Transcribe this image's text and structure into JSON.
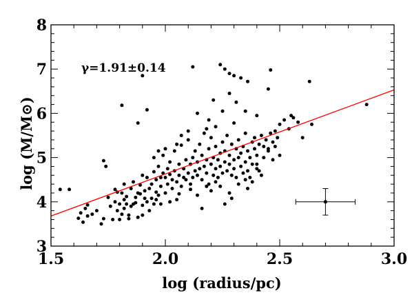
{
  "chart_data": {
    "type": "scatter",
    "xlabel": "log (radius/pc)",
    "ylabel": "log (M/M⊙)",
    "xlim": [
      1.5,
      3.0
    ],
    "ylim": [
      3.0,
      8.0
    ],
    "xticks": [
      "1.5",
      "2.0",
      "2.5",
      "3.0"
    ],
    "yticks": [
      "3",
      "4",
      "5",
      "6",
      "7",
      "8"
    ],
    "annotation": "γ=1.91±0.14",
    "fit_line": {
      "color": "#ff0000",
      "slope": 1.91,
      "x": [
        1.5,
        3.0
      ],
      "y": [
        3.68,
        6.53
      ]
    },
    "error_bar": {
      "x": 2.7,
      "y": 4.0,
      "xerr": 0.13,
      "yerr": 0.3
    },
    "points": [
      [
        1.54,
        4.28
      ],
      [
        1.58,
        4.28
      ],
      [
        1.62,
        3.63
      ],
      [
        1.63,
        3.75
      ],
      [
        1.64,
        3.54
      ],
      [
        1.65,
        3.85
      ],
      [
        1.66,
        3.93
      ],
      [
        1.66,
        3.68
      ],
      [
        1.68,
        3.72
      ],
      [
        1.7,
        3.8
      ],
      [
        1.72,
        3.5
      ],
      [
        1.73,
        3.62
      ],
      [
        1.73,
        4.93
      ],
      [
        1.74,
        4.8
      ],
      [
        1.75,
        4.1
      ],
      [
        1.76,
        3.9
      ],
      [
        1.77,
        3.6
      ],
      [
        1.78,
        4.0
      ],
      [
        1.78,
        4.28
      ],
      [
        1.79,
        3.8
      ],
      [
        1.79,
        4.22
      ],
      [
        1.8,
        3.6
      ],
      [
        1.8,
        3.95
      ],
      [
        1.81,
        3.72
      ],
      [
        1.81,
        4.2
      ],
      [
        1.82,
        4.05
      ],
      [
        1.82,
        4.4
      ],
      [
        1.82,
        3.85
      ],
      [
        1.83,
        3.95
      ],
      [
        1.83,
        4.12
      ],
      [
        1.84,
        3.7
      ],
      [
        1.84,
        3.62
      ],
      [
        1.85,
        3.9
      ],
      [
        1.85,
        4.3
      ],
      [
        1.86,
        4.45
      ],
      [
        1.86,
        3.95
      ],
      [
        1.87,
        3.98
      ],
      [
        1.87,
        4.1
      ],
      [
        1.88,
        3.65
      ],
      [
        1.88,
        4.2
      ],
      [
        1.89,
        4.18
      ],
      [
        1.89,
        4.38
      ],
      [
        1.9,
        3.92
      ],
      [
        1.9,
        3.7
      ],
      [
        1.9,
        4.6
      ],
      [
        1.91,
        4.08
      ],
      [
        1.91,
        4.25
      ],
      [
        1.92,
        4.0
      ],
      [
        1.92,
        4.55
      ],
      [
        1.93,
        4.3
      ],
      [
        1.93,
        3.8
      ],
      [
        1.94,
        4.4
      ],
      [
        1.94,
        4.08
      ],
      [
        1.95,
        4.68
      ],
      [
        1.95,
        3.95
      ],
      [
        1.96,
        4.22
      ],
      [
        1.96,
        4.5
      ],
      [
        1.97,
        4.15
      ],
      [
        1.97,
        4.8
      ],
      [
        1.98,
        4.35
      ],
      [
        1.98,
        4.55
      ],
      [
        1.99,
        4.65
      ],
      [
        1.99,
        5.05
      ],
      [
        2.0,
        4.2
      ],
      [
        2.0,
        4.55
      ],
      [
        2.01,
        4.4
      ],
      [
        2.01,
        4.75
      ],
      [
        2.02,
        4.62
      ],
      [
        2.02,
        4.9
      ],
      [
        2.03,
        4.3
      ],
      [
        2.03,
        4.5
      ],
      [
        2.04,
        4.7
      ],
      [
        2.04,
        5.15
      ],
      [
        2.05,
        4.45
      ],
      [
        2.05,
        4.05
      ],
      [
        2.06,
        4.6
      ],
      [
        2.06,
        4.85
      ],
      [
        2.07,
        4.35
      ],
      [
        2.07,
        5.28
      ],
      [
        2.08,
        4.55
      ],
      [
        2.08,
        4.75
      ],
      [
        2.09,
        4.95
      ],
      [
        2.09,
        4.5
      ],
      [
        2.1,
        4.65
      ],
      [
        2.1,
        5.4
      ],
      [
        2.11,
        4.4
      ],
      [
        2.11,
        4.85
      ],
      [
        2.12,
        5.0
      ],
      [
        2.12,
        4.55
      ],
      [
        2.13,
        4.7
      ],
      [
        2.13,
        5.15
      ],
      [
        2.14,
        4.9
      ],
      [
        2.14,
        4.6
      ],
      [
        2.15,
        4.75
      ],
      [
        2.15,
        5.3
      ],
      [
        2.16,
        4.5
      ],
      [
        2.16,
        5.05
      ],
      [
        2.17,
        4.8
      ],
      [
        2.17,
        5.55
      ],
      [
        2.18,
        4.65
      ],
      [
        2.18,
        4.95
      ],
      [
        2.19,
        5.2
      ],
      [
        2.19,
        4.4
      ],
      [
        2.2,
        4.85
      ],
      [
        2.2,
        5.45
      ],
      [
        2.21,
        4.6
      ],
      [
        2.21,
        5.0
      ],
      [
        2.22,
        4.75
      ],
      [
        2.22,
        5.25
      ],
      [
        2.23,
        4.95
      ],
      [
        2.23,
        4.55
      ],
      [
        2.24,
        5.1
      ],
      [
        2.24,
        4.8
      ],
      [
        2.25,
        5.35
      ],
      [
        2.25,
        4.65
      ],
      [
        2.26,
        4.9
      ],
      [
        2.26,
        5.15
      ],
      [
        2.27,
        4.7
      ],
      [
        2.27,
        5.5
      ],
      [
        2.28,
        4.85
      ],
      [
        2.28,
        5.05
      ],
      [
        2.29,
        4.6
      ],
      [
        2.29,
        5.3
      ],
      [
        2.3,
        4.95
      ],
      [
        2.3,
        4.75
      ],
      [
        2.31,
        5.2
      ],
      [
        2.31,
        4.55
      ],
      [
        2.32,
        5.0
      ],
      [
        2.32,
        5.4
      ],
      [
        2.33,
        4.8
      ],
      [
        2.33,
        5.1
      ],
      [
        2.34,
        4.65
      ],
      [
        2.34,
        5.25
      ],
      [
        2.35,
        4.9
      ],
      [
        2.35,
        5.55
      ],
      [
        2.36,
        4.7
      ],
      [
        2.36,
        5.15
      ],
      [
        2.37,
        5.0
      ],
      [
        2.37,
        4.55
      ],
      [
        2.38,
        5.35
      ],
      [
        2.38,
        4.85
      ],
      [
        2.39,
        5.2
      ],
      [
        2.39,
        5.45
      ],
      [
        2.4,
        5.05
      ],
      [
        2.4,
        4.75
      ],
      [
        2.41,
        5.3
      ],
      [
        2.42,
        5.5
      ],
      [
        2.43,
        5.25
      ],
      [
        2.44,
        5.4
      ],
      [
        2.45,
        5.15
      ],
      [
        2.46,
        5.55
      ],
      [
        2.47,
        5.35
      ],
      [
        2.48,
        5.6
      ],
      [
        2.49,
        5.45
      ],
      [
        2.5,
        5.75
      ],
      [
        2.52,
        5.85
      ],
      [
        2.54,
        5.65
      ],
      [
        2.56,
        5.9
      ],
      [
        2.58,
        5.8
      ],
      [
        2.6,
        5.45
      ],
      [
        1.88,
        5.78
      ],
      [
        1.9,
        6.85
      ],
      [
        1.81,
        6.18
      ],
      [
        1.92,
        6.08
      ],
      [
        2.12,
        7.05
      ],
      [
        2.21,
        6.3
      ],
      [
        2.24,
        7.1
      ],
      [
        2.26,
        7.0
      ],
      [
        2.28,
        6.9
      ],
      [
        2.3,
        6.85
      ],
      [
        2.33,
        6.8
      ],
      [
        2.36,
        6.72
      ],
      [
        2.28,
        6.45
      ],
      [
        2.31,
        6.25
      ],
      [
        2.25,
        6.05
      ],
      [
        2.19,
        5.85
      ],
      [
        2.14,
        6.0
      ],
      [
        2.46,
        6.98
      ],
      [
        2.45,
        6.55
      ],
      [
        2.63,
        6.72
      ],
      [
        2.64,
        5.75
      ],
      [
        2.88,
        6.2
      ],
      [
        2.55,
        5.95
      ],
      [
        2.4,
        5.95
      ],
      [
        2.35,
        6.05
      ],
      [
        2.3,
        5.78
      ],
      [
        2.22,
        5.7
      ],
      [
        2.18,
        5.65
      ],
      [
        2.1,
        5.6
      ],
      [
        2.07,
        5.5
      ],
      [
        2.05,
        5.3
      ],
      [
        2.0,
        5.2
      ],
      [
        1.97,
        5.15
      ],
      [
        1.95,
        5.0
      ],
      [
        2.16,
        3.85
      ],
      [
        2.28,
        4.2
      ],
      [
        2.24,
        4.35
      ],
      [
        2.32,
        4.4
      ],
      [
        2.38,
        4.45
      ],
      [
        2.42,
        4.6
      ],
      [
        2.47,
        4.95
      ],
      [
        2.5,
        5.05
      ],
      [
        2.2,
        4.25
      ],
      [
        2.14,
        4.15
      ],
      [
        2.02,
        4.0
      ],
      [
        1.96,
        4.05
      ],
      [
        2.26,
        3.95
      ],
      [
        2.35,
        4.5
      ],
      [
        2.4,
        4.85
      ],
      [
        2.43,
        5.0
      ],
      [
        2.45,
        5.2
      ],
      [
        2.22,
        4.45
      ],
      [
        2.18,
        4.35
      ],
      [
        2.11,
        4.28
      ],
      [
        2.06,
        4.18
      ],
      [
        1.98,
        3.95
      ],
      [
        2.29,
        4.08
      ],
      [
        2.36,
        4.3
      ],
      [
        2.41,
        4.7
      ],
      [
        2.48,
        5.25
      ]
    ]
  }
}
